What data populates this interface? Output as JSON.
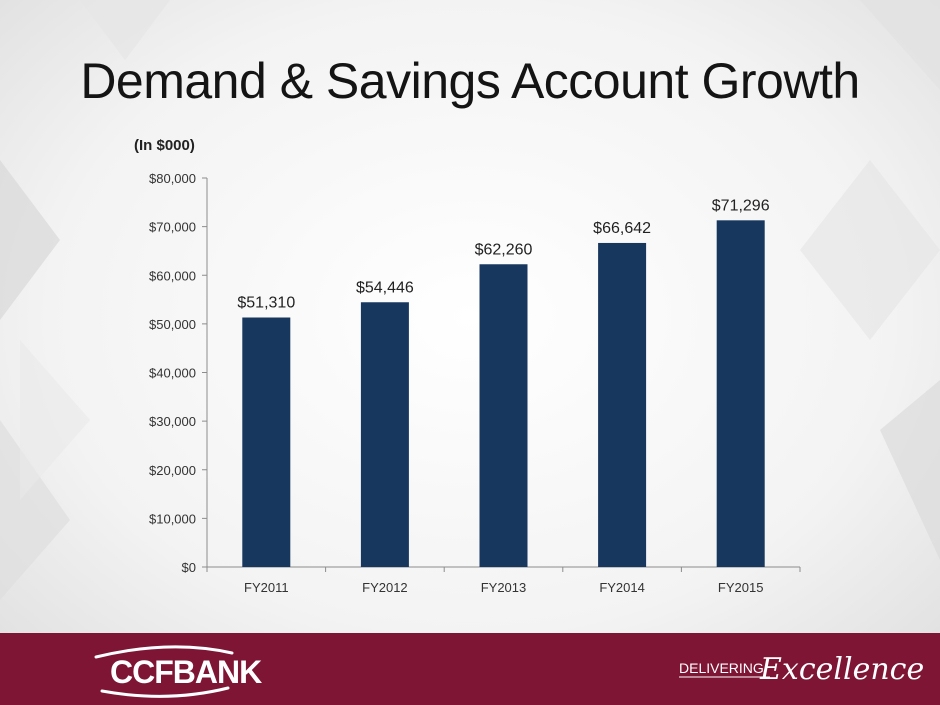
{
  "slide": {
    "title": "Demand & Savings Account Growth",
    "unit_note": "(In $000)"
  },
  "brand": {
    "logo_text": "CCFBANK",
    "tagline_prefix": "DELIVERING",
    "tagline_script": "Excellence",
    "footer_color": "#7e1535"
  },
  "chart_data": {
    "type": "bar",
    "categories": [
      "FY2011",
      "FY2012",
      "FY2013",
      "FY2014",
      "FY2015"
    ],
    "values": [
      51310,
      54446,
      62260,
      66642,
      71296
    ],
    "data_labels": [
      "$51,310",
      "$54,446",
      "$62,260",
      "$66,642",
      "$71,296"
    ],
    "title": "",
    "xlabel": "",
    "ylabel": "",
    "ylim": [
      0,
      80000
    ],
    "y_ticks": [
      0,
      10000,
      20000,
      30000,
      40000,
      50000,
      60000,
      70000,
      80000
    ],
    "y_tick_labels": [
      "$0",
      "$10,000",
      "$20,000",
      "$30,000",
      "$40,000",
      "$50,000",
      "$60,000",
      "$70,000",
      "$80,000"
    ],
    "bar_color": "#17375e",
    "grid": false,
    "legend": "none"
  }
}
